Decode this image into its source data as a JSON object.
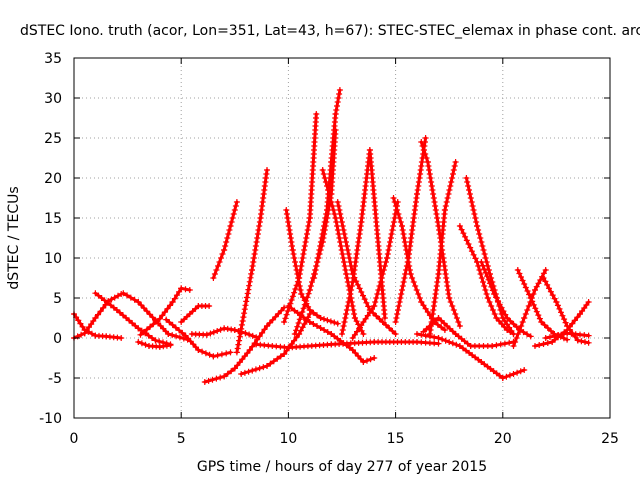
{
  "chart_data": {
    "type": "scatter",
    "title": "dSTEC Iono. truth (acor, Lon=351, Lat=43, h=67): STEC-STEC_elemax in phase cont. arc",
    "xlabel": "GPS time / hours of day 277 of year 2015",
    "ylabel": "dSTEC  / TECUs",
    "xlim": [
      0,
      25
    ],
    "ylim": [
      -10,
      35
    ],
    "xticks": [
      "0",
      "5",
      "10",
      "15",
      "20",
      "25"
    ],
    "yticks": [
      "-10",
      "-5",
      "0",
      "5",
      "10",
      "15",
      "20",
      "25",
      "30",
      "35"
    ],
    "grid": true,
    "marker": "plus",
    "color": "#ff0000",
    "series": [
      {
        "x": [
          0,
          0.5,
          1.0,
          1.5,
          2.2
        ],
        "y": [
          3,
          1.0,
          0.3,
          0.2,
          0
        ]
      },
      {
        "x": [
          0,
          0.5,
          1.0,
          1.6,
          2.2
        ],
        "y": [
          0,
          0.6,
          2.5,
          4.6,
          5.5
        ]
      },
      {
        "x": [
          1.0,
          2.0,
          3.0,
          3.8,
          4.5
        ],
        "y": [
          5.6,
          3.5,
          1.2,
          -0.3,
          -0.8
        ]
      },
      {
        "x": [
          2.3,
          3.0,
          3.8,
          4.4,
          5.3
        ],
        "y": [
          5.6,
          4.5,
          2.2,
          0.5,
          -0.2
        ]
      },
      {
        "x": [
          3.1,
          4.0,
          4.6,
          5.0,
          5.4
        ],
        "y": [
          0.4,
          2.4,
          4.5,
          6.2,
          6.0
        ]
      },
      {
        "x": [
          4.3,
          5.2,
          5.8,
          6.5,
          7.3
        ],
        "y": [
          2.3,
          0.3,
          -1.5,
          -2.3,
          -1.8
        ]
      },
      {
        "x": [
          3.0,
          3.5,
          4.0,
          4.5
        ],
        "y": [
          -0.5,
          -1.0,
          -1.1,
          -0.9
        ]
      },
      {
        "x": [
          5.0,
          5.8,
          6.3
        ],
        "y": [
          2.0,
          4.0,
          4.0
        ]
      },
      {
        "x": [
          6.1,
          7.0,
          7.5,
          8.2,
          9.0,
          9.8
        ],
        "y": [
          -5.5,
          -4.8,
          -3.8,
          -1.5,
          1.5,
          3.8
        ]
      },
      {
        "x": [
          6.5,
          7.0,
          7.3,
          7.6
        ],
        "y": [
          7.5,
          11.0,
          14.0,
          17.0
        ]
      },
      {
        "x": [
          5.5,
          6.2,
          7.0,
          7.5,
          8.0,
          8.5
        ],
        "y": [
          0.5,
          0.4,
          1.2,
          1.0,
          0.6,
          0.1
        ]
      },
      {
        "x": [
          7.6,
          8.3,
          8.7,
          9.0
        ],
        "y": [
          -1.8,
          8.5,
          15.0,
          21.0
        ]
      },
      {
        "x": [
          7.8,
          9.0,
          9.8,
          10.5,
          11.0
        ],
        "y": [
          -4.5,
          -3.5,
          -2.0,
          0.5,
          3.0
        ]
      },
      {
        "x": [
          9.8,
          10.5,
          11.0,
          11.3
        ],
        "y": [
          2.0,
          7.5,
          15.0,
          28.0
        ]
      },
      {
        "x": [
          9.9,
          10.2,
          10.6,
          11.0,
          11.5,
          12.3
        ],
        "y": [
          16.0,
          11.0,
          5.5,
          3.5,
          2.5,
          1.8
        ]
      },
      {
        "x": [
          10.3,
          11.0,
          11.6,
          12.0,
          12.2
        ],
        "y": [
          0.5,
          6.0,
          12.0,
          18.0,
          26.0
        ]
      },
      {
        "x": [
          11.2,
          11.8,
          12.0,
          12.2,
          12.4
        ],
        "y": [
          7.5,
          16.0,
          22.0,
          28.0,
          31.0
        ]
      },
      {
        "x": [
          11.6,
          12.2,
          12.7,
          13.1,
          13.5
        ],
        "y": [
          21.0,
          15.0,
          8.0,
          2.5,
          0.5
        ]
      },
      {
        "x": [
          12.3,
          13.0,
          13.8,
          14.4,
          15.0
        ],
        "y": [
          17.0,
          8.0,
          3.5,
          2.0,
          0.5
        ]
      },
      {
        "x": [
          12.5,
          13.0,
          13.4,
          13.8,
          14.5
        ],
        "y": [
          0.5,
          7.0,
          14.5,
          23.5,
          2.5
        ]
      },
      {
        "x": [
          10.0,
          11.0,
          12.0,
          13.0,
          13.5,
          14.0
        ],
        "y": [
          4.0,
          2.0,
          0.5,
          -1.5,
          -3.0,
          -2.5
        ]
      },
      {
        "x": [
          8.5,
          10.0,
          12.0,
          14.0,
          16.0,
          17.0
        ],
        "y": [
          -0.8,
          -1.2,
          -0.8,
          -0.5,
          -0.5,
          -0.7
        ]
      },
      {
        "x": [
          13.0,
          14.0,
          14.6,
          15.1
        ],
        "y": [
          0.0,
          4.0,
          10.0,
          17.0
        ]
      },
      {
        "x": [
          14.9,
          15.3,
          15.7,
          16.2,
          16.8,
          17.3
        ],
        "y": [
          17.5,
          14.0,
          8.0,
          4.5,
          2.0,
          1.0
        ]
      },
      {
        "x": [
          15.0,
          15.6,
          16.0,
          16.4
        ],
        "y": [
          2.0,
          10.0,
          18.0,
          25.0
        ]
      },
      {
        "x": [
          16.2,
          16.5,
          17.0,
          17.5,
          18.0
        ],
        "y": [
          24.5,
          22.0,
          14.0,
          5.0,
          1.5
        ]
      },
      {
        "x": [
          16.6,
          17.0,
          17.3,
          17.8
        ],
        "y": [
          0.5,
          8.0,
          16.0,
          22.0
        ]
      },
      {
        "x": [
          16.3,
          17.0,
          17.8,
          18.5,
          19.5,
          20.5
        ],
        "y": [
          0.8,
          2.5,
          0.5,
          -1.0,
          -1.0,
          -0.5
        ]
      },
      {
        "x": [
          18.3,
          18.8,
          19.4,
          20.0,
          20.5
        ],
        "y": [
          20.0,
          14.0,
          8.0,
          2.5,
          0.5
        ]
      },
      {
        "x": [
          18.0,
          18.8,
          19.3,
          19.7,
          20.2,
          20.5
        ],
        "y": [
          14.0,
          9.5,
          5.0,
          2.5,
          1.0,
          0.5
        ]
      },
      {
        "x": [
          19.0,
          19.6,
          20.2,
          20.8,
          21.3
        ],
        "y": [
          9.5,
          5.5,
          2.5,
          1.0,
          0.2
        ]
      },
      {
        "x": [
          16.0,
          17.0,
          18.0,
          19.0,
          20.0,
          21.0
        ],
        "y": [
          0.5,
          0.0,
          -1.0,
          -3.0,
          -5.0,
          -4.0
        ]
      },
      {
        "x": [
          20.5,
          21.0,
          21.5,
          22.0
        ],
        "y": [
          -1.0,
          2.5,
          6.0,
          8.5
        ]
      },
      {
        "x": [
          20.7,
          21.3,
          21.8,
          22.4,
          23.0
        ],
        "y": [
          8.5,
          5.0,
          2.0,
          0.5,
          -0.2
        ]
      },
      {
        "x": [
          21.9,
          22.5,
          23.0,
          23.5,
          24.0
        ],
        "y": [
          7.5,
          4.5,
          1.5,
          -0.3,
          -0.6
        ]
      },
      {
        "x": [
          21.5,
          22.3,
          23.0,
          23.6,
          24.0
        ],
        "y": [
          -1.0,
          -0.5,
          1.0,
          3.0,
          4.5
        ]
      },
      {
        "x": [
          22.0,
          23.0,
          24.0
        ],
        "y": [
          0.0,
          0.6,
          0.3
        ]
      }
    ]
  }
}
